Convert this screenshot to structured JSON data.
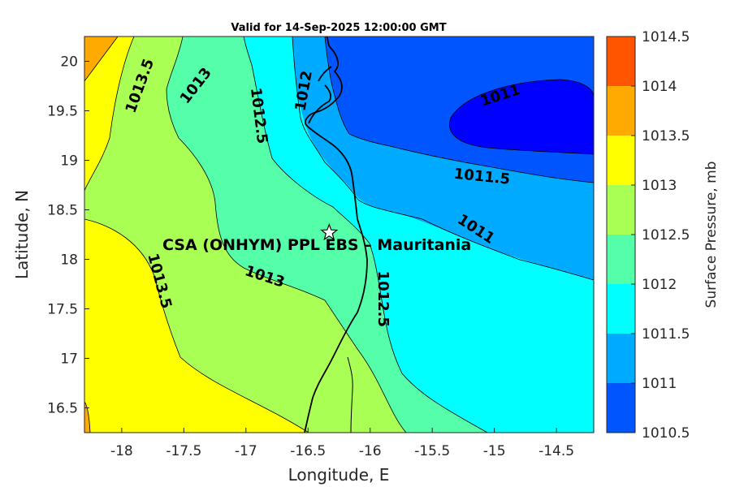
{
  "title": "Valid for 14-Sep-2025 12:00:00 GMT",
  "site_label": "CSA (ONHYM) PPL EBS  – Mauritania",
  "site_marker": {
    "lon": -16.33,
    "lat": 18.27
  },
  "chart_data": {
    "type": "contour-map",
    "xlabel": "Longitude, E",
    "ylabel": "Latitude, N",
    "xlim": [
      -18.3,
      -14.2
    ],
    "ylim": [
      16.25,
      20.25
    ],
    "xticks": [
      "-18",
      "-17.5",
      "-17",
      "-16.5",
      "-16",
      "-15.5",
      "-15",
      "-14.5"
    ],
    "yticks": [
      "16.5",
      "17",
      "17.5",
      "18",
      "18.5",
      "19",
      "19.5",
      "20"
    ],
    "colorbar": {
      "title": "Surface Pressure, mb",
      "levels": [
        "1010.5",
        "1011",
        "1011.5",
        "1012",
        "1012.5",
        "1013",
        "1013.5",
        "1014",
        "1014.5"
      ],
      "colors": [
        "#0000ff",
        "#0055ff",
        "#00aaff",
        "#00ffff",
        "#55ffaa",
        "#aaff55",
        "#ffff00",
        "#ffaa00",
        "#ff5500"
      ]
    },
    "contour_labels": [
      {
        "text": "1013.5",
        "lon": -17.85,
        "lat": 19.75,
        "angle": -70
      },
      {
        "text": "1013",
        "lon": -17.4,
        "lat": 19.75,
        "angle": -52
      },
      {
        "text": "1012.5",
        "lon": -16.9,
        "lat": 19.45,
        "angle": 83
      },
      {
        "text": "1012",
        "lon": -16.53,
        "lat": 19.7,
        "angle": -80
      },
      {
        "text": "1011",
        "lon": -14.95,
        "lat": 19.65,
        "angle": -18
      },
      {
        "text": "1011.5",
        "lon": -15.1,
        "lat": 18.83,
        "angle": 6
      },
      {
        "text": "1011",
        "lon": -15.15,
        "lat": 18.3,
        "angle": 33
      },
      {
        "text": "1013",
        "lon": -16.85,
        "lat": 17.82,
        "angle": 18
      },
      {
        "text": "1013.5",
        "lon": -17.7,
        "lat": 17.78,
        "angle": 75
      },
      {
        "text": "1012.5",
        "lon": -15.9,
        "lat": 17.6,
        "angle": 90
      }
    ]
  }
}
